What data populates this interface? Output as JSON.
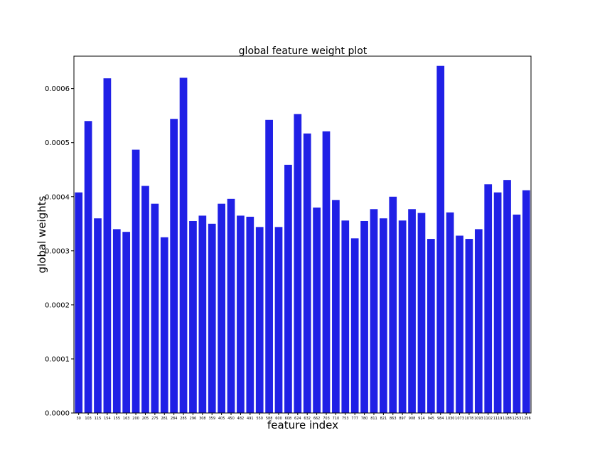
{
  "chart_data": {
    "type": "bar",
    "title": "global feature weight plot",
    "xlabel": "feature index",
    "ylabel": "global weights",
    "ylim": [
      0,
      0.00066
    ],
    "yticks": [
      "0.0000",
      "0.0001",
      "0.0002",
      "0.0003",
      "0.0004",
      "0.0005",
      "0.0006"
    ],
    "ytick_values": [
      0,
      0.0001,
      0.0002,
      0.0003,
      0.0004,
      0.0005,
      0.0006
    ],
    "grid": false,
    "bar_color": "#2020e6",
    "categories": [
      "30",
      "103",
      "115",
      "154",
      "155",
      "163",
      "200",
      "205",
      "275",
      "281",
      "284",
      "285",
      "296",
      "308",
      "359",
      "405",
      "450",
      "482",
      "491",
      "550",
      "588",
      "600",
      "608",
      "624",
      "632",
      "662",
      "703",
      "710",
      "753",
      "777",
      "780",
      "811",
      "821",
      "863",
      "897",
      "908",
      "914",
      "945",
      "984",
      "1030",
      "1073",
      "1078",
      "1093",
      "1102",
      "1119",
      "1188",
      "1253",
      "1256"
    ],
    "values": [
      0.000408,
      0.00054,
      0.00036,
      0.000619,
      0.00034,
      0.000335,
      0.000487,
      0.00042,
      0.000387,
      0.000325,
      0.000544,
      0.00062,
      0.000355,
      0.000365,
      0.00035,
      0.000387,
      0.000396,
      0.000365,
      0.000363,
      0.000344,
      0.000542,
      0.000344,
      0.000459,
      0.000553,
      0.000517,
      0.00038,
      0.000521,
      0.000394,
      0.000356,
      0.000323,
      0.000355,
      0.000377,
      0.00036,
      0.0004,
      0.000356,
      0.000377,
      0.00037,
      0.000322,
      0.000642,
      0.000371,
      0.000328,
      0.000322,
      0.00034,
      0.000423,
      0.000408,
      0.000431,
      0.000367,
      0.000412
    ]
  }
}
